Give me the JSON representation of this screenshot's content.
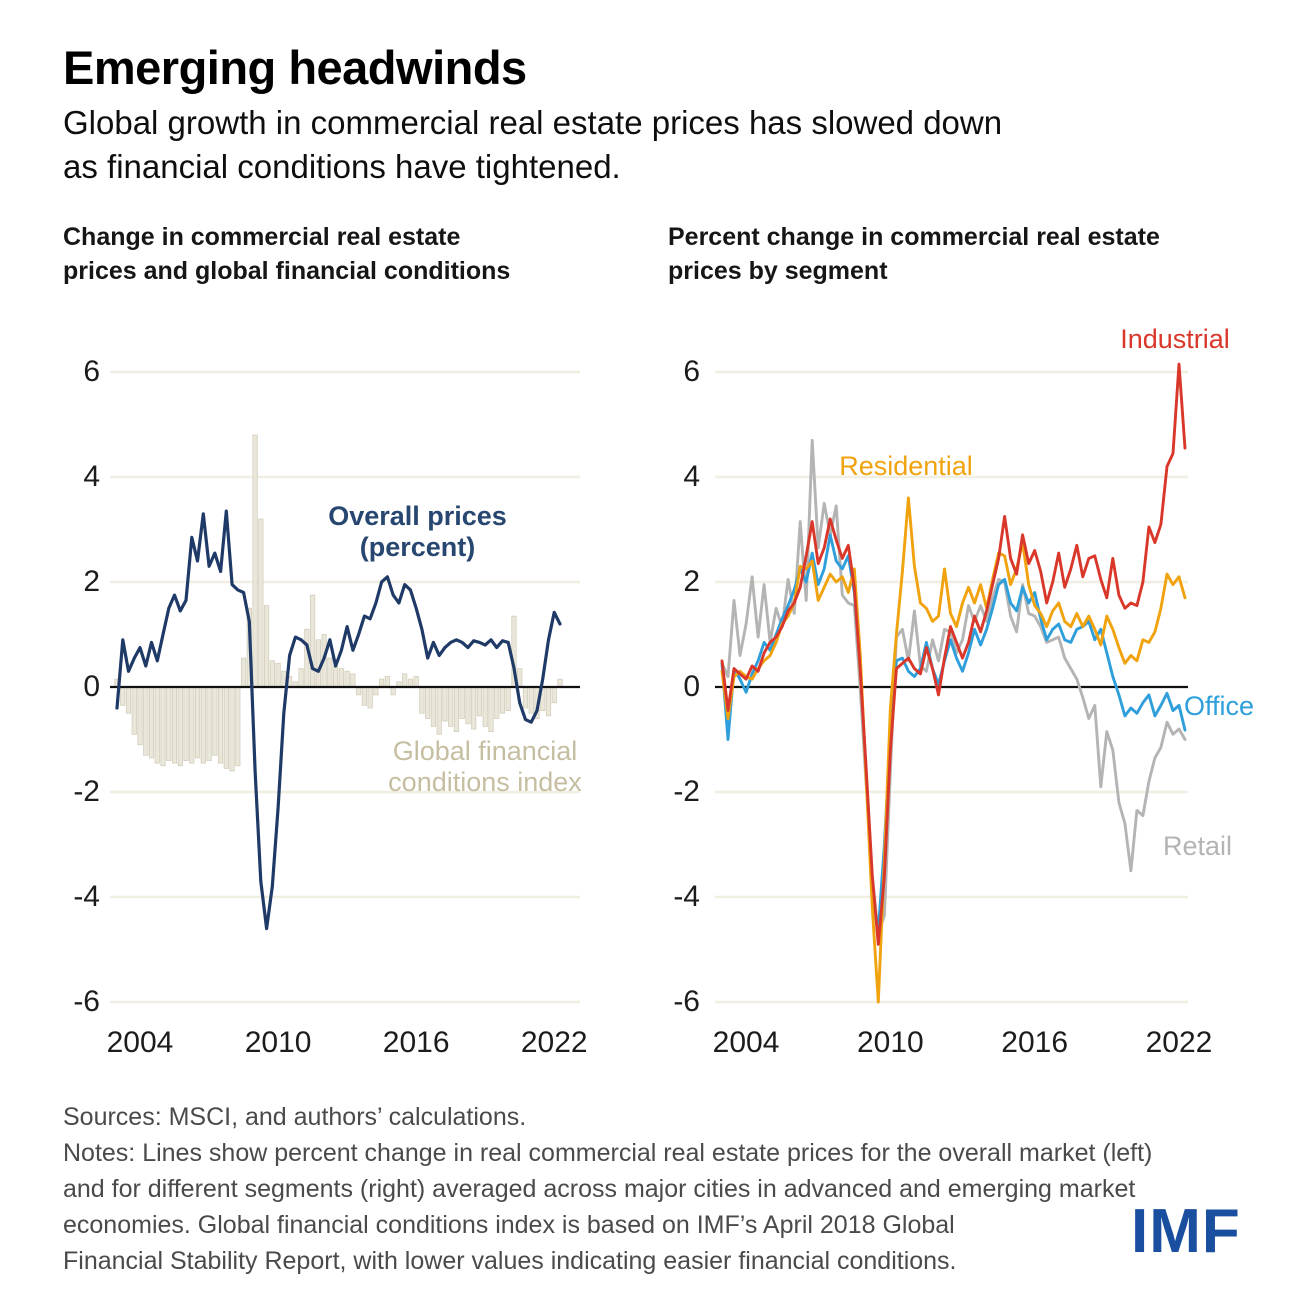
{
  "header": {
    "title": "Emerging headwinds",
    "subtitle_line1": "Global growth in commercial real estate prices has slowed down",
    "subtitle_line2": "as financial conditions have tightened."
  },
  "charts": {
    "left": {
      "heading_line1": "Change in commercial real estate",
      "heading_line2": "prices and global financial conditions",
      "line_label_1": "Overall prices",
      "line_label_2": "(percent)",
      "bar_label_1": "Global financial",
      "bar_label_2": "conditions index"
    },
    "right": {
      "heading_line1": "Percent change in commercial real estate",
      "heading_line2": "prices by segment",
      "label_industrial": "Industrial",
      "label_residential": "Residential",
      "label_office": "Office",
      "label_retail": "Retail"
    }
  },
  "footer": {
    "line1": "Sources: MSCI, and authors’ calculations.",
    "line2": "Notes: Lines show percent change in real commercial real estate prices for the overall market (left)",
    "line3": "and for different segments (right) averaged across major cities in advanced and emerging market",
    "line4": "economies. Global financial conditions index is based on IMF’s April 2018 Global",
    "line5": "Financial Stability Report, with lower values indicating easier financial conditions.",
    "logo": "IMF"
  },
  "colors": {
    "navy_line": "#1f3a67",
    "bar_fill": "#eae7da",
    "bar_stroke": "#d2cebc",
    "gridline": "#f1eee2",
    "zero_line": "#111111",
    "industrial_red": "#d9372a",
    "residential_orange": "#f0a30e",
    "office_blue": "#2f9fdb",
    "retail_gray": "#b4b4b4",
    "imf_blue": "#1a4f9f",
    "tan_label": "#c5bea0",
    "navy_label": "#274770"
  },
  "chart_data": [
    {
      "type": "bar",
      "title": "Change in commercial real estate prices and global financial conditions",
      "x_start": 2003.0,
      "x_step": 0.25,
      "x_ticks": [
        "2004",
        "2010",
        "2016",
        "2022"
      ],
      "x_tick_years": [
        2004,
        2010,
        2016,
        2022
      ],
      "y_ticks": [
        "6",
        "4",
        "2",
        "0",
        "-2",
        "-4",
        "-6"
      ],
      "y_tick_values": [
        6,
        4,
        2,
        0,
        -2,
        -4,
        -6
      ],
      "ylim": [
        -6.5,
        6.5
      ],
      "grid": true,
      "legend_position": "inline-annotations",
      "series": [
        {
          "name": "Overall prices (percent)",
          "kind": "line",
          "color": "#1f3a67",
          "values": [
            -0.4,
            0.9,
            0.3,
            0.55,
            0.75,
            0.4,
            0.85,
            0.5,
            1.0,
            1.5,
            1.75,
            1.45,
            1.65,
            2.85,
            2.4,
            3.3,
            2.3,
            2.55,
            2.2,
            3.35,
            1.95,
            1.85,
            1.8,
            1.25,
            -1.6,
            -3.7,
            -4.6,
            -3.8,
            -2.3,
            -0.5,
            0.6,
            0.95,
            0.9,
            0.8,
            0.35,
            0.3,
            0.55,
            0.9,
            0.4,
            0.7,
            1.15,
            0.7,
            1.0,
            1.35,
            1.3,
            1.6,
            2.0,
            2.1,
            1.75,
            1.6,
            1.95,
            1.85,
            1.5,
            1.1,
            0.55,
            0.85,
            0.6,
            0.75,
            0.85,
            0.9,
            0.85,
            0.75,
            0.88,
            0.85,
            0.8,
            0.9,
            0.75,
            0.88,
            0.85,
            0.36,
            -0.3,
            -0.62,
            -0.67,
            -0.45,
            0.15,
            0.9,
            1.42,
            1.2
          ]
        },
        {
          "name": "Global financial conditions index",
          "kind": "bar",
          "color": "#eae7da",
          "values": [
            0.15,
            -0.35,
            -0.5,
            -0.9,
            -1.1,
            -1.3,
            -1.35,
            -1.45,
            -1.5,
            -1.4,
            -1.45,
            -1.5,
            -1.4,
            -1.45,
            -1.35,
            -1.45,
            -1.4,
            -1.3,
            -1.45,
            -1.55,
            -1.6,
            -1.5,
            0.55,
            1.5,
            4.8,
            3.2,
            1.55,
            0.5,
            0.45,
            0.3,
            0.2,
            0.1,
            0.35,
            1.1,
            1.75,
            0.9,
            1.0,
            0.55,
            0.4,
            0.35,
            0.3,
            0.25,
            -0.15,
            -0.35,
            -0.4,
            -0.15,
            0.15,
            0.2,
            -0.15,
            0.1,
            0.25,
            0.15,
            0.2,
            -0.5,
            -0.6,
            -0.75,
            -0.9,
            -0.65,
            -0.75,
            -0.85,
            -0.6,
            -0.7,
            -0.8,
            -0.55,
            -0.75,
            -0.85,
            -0.6,
            -0.5,
            -0.45,
            1.35,
            0.35,
            -0.4,
            -0.5,
            -0.6,
            -0.45,
            -0.55,
            -0.3,
            0.15
          ]
        }
      ]
    },
    {
      "type": "line",
      "title": "Percent change in commercial real estate prices by segment",
      "x_start": 2003.0,
      "x_step": 0.25,
      "x_ticks": [
        "2004",
        "2010",
        "2016",
        "2022"
      ],
      "x_tick_years": [
        2004,
        2010,
        2016,
        2022
      ],
      "y_ticks": [
        "6",
        "4",
        "2",
        "0",
        "-2",
        "-4",
        "-6"
      ],
      "y_tick_values": [
        6,
        4,
        2,
        0,
        -2,
        -4,
        -6
      ],
      "ylim": [
        -6.5,
        6.5
      ],
      "grid": true,
      "legend_position": "inline-annotations",
      "series": [
        {
          "name": "Retail",
          "kind": "line",
          "color": "#b4b4b4",
          "values": [
            0.45,
            0.2,
            1.65,
            0.6,
            1.2,
            2.1,
            0.95,
            1.95,
            0.85,
            1.5,
            1.15,
            2.05,
            1.4,
            3.15,
            1.65,
            4.7,
            2.65,
            3.5,
            2.9,
            3.45,
            1.75,
            1.6,
            1.55,
            -0.05,
            -1.9,
            -3.6,
            -4.7,
            -4.35,
            -1.6,
            0.95,
            1.1,
            0.5,
            1.45,
            0.4,
            0.3,
            0.9,
            0.5,
            1.1,
            1.05,
            0.65,
            0.9,
            1.55,
            1.25,
            1.55,
            1.25,
            1.7,
            2.05,
            2.0,
            1.35,
            1.05,
            1.95,
            1.4,
            1.35,
            1.15,
            0.85,
            0.9,
            0.95,
            0.55,
            0.35,
            0.15,
            -0.2,
            -0.6,
            -0.35,
            -1.9,
            -0.85,
            -1.2,
            -2.2,
            -2.6,
            -3.5,
            -2.35,
            -2.45,
            -1.8,
            -1.35,
            -1.15,
            -0.67,
            -0.9,
            -0.8,
            -1.0
          ]
        },
        {
          "name": "Office",
          "kind": "line",
          "color": "#2f9fdb",
          "values": [
            0.45,
            -1.0,
            0.35,
            0.15,
            -0.1,
            0.25,
            0.5,
            0.85,
            0.7,
            1.0,
            1.3,
            1.55,
            1.85,
            2.25,
            2.0,
            2.55,
            1.95,
            2.25,
            2.9,
            2.4,
            2.25,
            2.5,
            1.8,
            0.4,
            -1.7,
            -3.9,
            -4.65,
            -3.0,
            -0.9,
            0.5,
            0.55,
            0.3,
            0.2,
            0.35,
            0.85,
            0.35,
            0.05,
            0.5,
            0.9,
            0.55,
            0.3,
            0.65,
            1.1,
            0.8,
            1.1,
            1.5,
            1.95,
            2.05,
            1.6,
            1.45,
            1.9,
            1.6,
            1.8,
            1.3,
            0.9,
            1.1,
            1.2,
            0.9,
            0.85,
            1.1,
            1.15,
            1.25,
            0.9,
            1.1,
            0.65,
            0.2,
            -0.15,
            -0.55,
            -0.4,
            -0.5,
            -0.3,
            -0.15,
            -0.55,
            -0.35,
            -0.12,
            -0.45,
            -0.35,
            -0.82
          ]
        },
        {
          "name": "Residential",
          "kind": "line",
          "color": "#f0a30e",
          "values": [
            0.3,
            -0.6,
            0.2,
            0.3,
            0.2,
            0.15,
            0.35,
            0.5,
            0.6,
            0.85,
            1.2,
            1.35,
            1.6,
            2.3,
            2.25,
            2.4,
            1.65,
            1.9,
            2.15,
            2.0,
            2.1,
            1.8,
            2.25,
            0.6,
            -1.8,
            -4.2,
            -6.0,
            -3.3,
            -0.4,
            1.0,
            2.2,
            3.6,
            2.3,
            1.6,
            1.5,
            1.25,
            1.35,
            2.25,
            1.4,
            1.15,
            1.6,
            1.9,
            1.6,
            1.95,
            1.5,
            2.05,
            2.55,
            2.5,
            1.95,
            2.25,
            2.75,
            1.95,
            1.55,
            1.4,
            1.15,
            1.45,
            1.6,
            1.25,
            1.15,
            1.4,
            1.15,
            1.35,
            1.1,
            0.8,
            1.35,
            1.1,
            0.75,
            0.45,
            0.6,
            0.5,
            0.9,
            0.85,
            1.05,
            1.5,
            2.15,
            1.95,
            2.1,
            1.7
          ]
        },
        {
          "name": "Industrial",
          "kind": "line",
          "color": "#d9372a",
          "values": [
            0.5,
            -0.45,
            0.35,
            0.25,
            0.15,
            0.4,
            0.3,
            0.65,
            0.85,
            0.95,
            1.15,
            1.45,
            1.6,
            1.9,
            2.5,
            3.15,
            2.35,
            2.65,
            3.2,
            2.8,
            2.45,
            2.7,
            1.9,
            0.3,
            -1.6,
            -3.6,
            -4.9,
            -3.6,
            -1.2,
            0.35,
            0.45,
            0.55,
            0.35,
            0.25,
            0.75,
            0.35,
            -0.15,
            0.55,
            1.15,
            0.85,
            0.55,
            0.85,
            1.35,
            1.05,
            1.45,
            1.95,
            2.45,
            3.25,
            2.45,
            2.15,
            2.9,
            2.35,
            2.6,
            2.2,
            1.6,
            2.0,
            2.55,
            1.9,
            2.25,
            2.7,
            2.1,
            2.45,
            2.5,
            2.05,
            1.7,
            2.45,
            1.75,
            1.5,
            1.6,
            1.55,
            2.0,
            3.05,
            2.75,
            3.1,
            4.2,
            4.45,
            6.15,
            4.55
          ]
        }
      ]
    }
  ]
}
